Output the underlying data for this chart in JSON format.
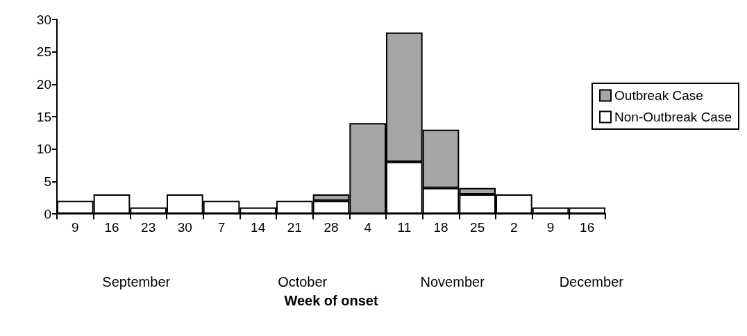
{
  "chart_data": {
    "type": "bar",
    "stacked": true,
    "xlabel": "Week of onset",
    "categories": [
      "9",
      "16",
      "23",
      "30",
      "7",
      "14",
      "21",
      "28",
      "4",
      "11",
      "18",
      "25",
      "2",
      "9",
      "16"
    ],
    "series": [
      {
        "name": "Non-Outbreak Case",
        "color": "#ffffff",
        "values": [
          2,
          3,
          1,
          3,
          2,
          1,
          2,
          2,
          0,
          8,
          4,
          3,
          3,
          1,
          1
        ]
      },
      {
        "name": "Outbreak Case",
        "color": "#a6a6a6",
        "values": [
          0,
          0,
          0,
          0,
          0,
          0,
          0,
          1,
          14,
          20,
          9,
          1,
          0,
          0,
          0
        ]
      }
    ],
    "annotations": [
      "September",
      "October",
      "November",
      "December"
    ],
    "ylim": [
      0,
      30
    ],
    "yticks": [
      0,
      5,
      10,
      15,
      20,
      25,
      30
    ],
    "grid": false,
    "legend": "right"
  }
}
